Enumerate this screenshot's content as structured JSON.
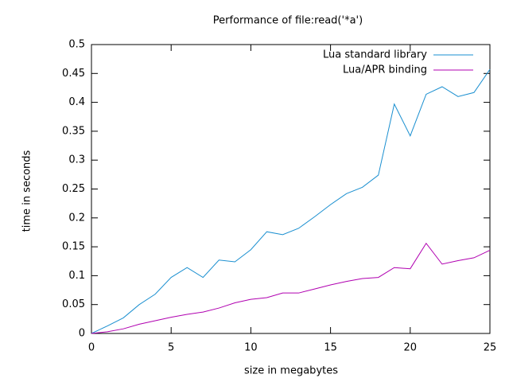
{
  "chart_data": {
    "type": "line",
    "title": "Performance of file:read('*a')",
    "x_label": "size in megabytes",
    "y_label": "time in seconds",
    "x": [
      0,
      1,
      2,
      3,
      4,
      5,
      6,
      7,
      8,
      9,
      10,
      11,
      12,
      13,
      14,
      15,
      16,
      17,
      18,
      19,
      20,
      21,
      22,
      23,
      24,
      25
    ],
    "series": [
      {
        "name": "Lua standard library",
        "color": "#1a8fd0",
        "values": [
          0,
          0.013,
          0.027,
          0.05,
          0.068,
          0.097,
          0.114,
          0.097,
          0.127,
          0.124,
          0.145,
          0.176,
          0.171,
          0.182,
          0.202,
          0.223,
          0.242,
          0.253,
          0.274,
          0.397,
          0.342,
          0.414,
          0.427,
          0.41,
          0.417,
          0.457
        ]
      },
      {
        "name": "Lua/APR binding",
        "color": "#b000b0",
        "values": [
          0,
          0.003,
          0.008,
          0.016,
          0.022,
          0.028,
          0.033,
          0.037,
          0.044,
          0.053,
          0.059,
          0.062,
          0.07,
          0.07,
          0.077,
          0.084,
          0.09,
          0.095,
          0.097,
          0.114,
          0.112,
          0.156,
          0.12,
          0.126,
          0.131,
          0.144
        ]
      }
    ],
    "xlim": [
      0,
      25
    ],
    "xticks": [
      0,
      5,
      10,
      15,
      20,
      25
    ],
    "ylim": [
      0,
      0.5
    ],
    "yticks": [
      0,
      0.05,
      0.1,
      0.15,
      0.2,
      0.25,
      0.3,
      0.35,
      0.4,
      0.45,
      0.5
    ],
    "legend": "top-right"
  }
}
